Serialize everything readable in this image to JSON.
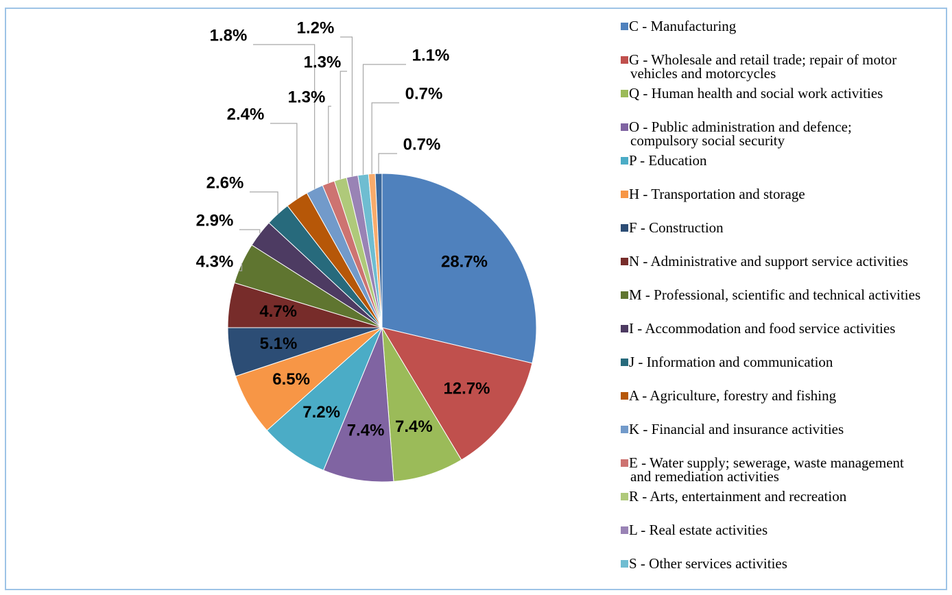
{
  "chart_data": {
    "type": "pie",
    "categories": [
      "C - Manufacturing",
      "G - Wholesale and retail trade; repair of motor vehicles and motorcycles",
      "Q - Human health and social work activities",
      "O - Public administration and defence; compulsory social security",
      "P - Education",
      "H - Transportation and storage",
      "F - Construction",
      "N - Administrative and support service activities",
      "M - Professional, scientific and technical activities",
      "I - Accommodation and food service activities",
      "J - Information and communication",
      "A - Agriculture, forestry and fishing",
      "K - Financial and insurance activities",
      "E - Water supply; sewerage, waste management  and remediation activities",
      "R - Arts, entertainment and recreation",
      "L - Real estate activities",
      "S - Other services activities",
      null,
      null
    ],
    "values": [
      28.7,
      12.7,
      7.4,
      7.4,
      7.2,
      6.5,
      5.1,
      4.7,
      4.3,
      2.9,
      2.6,
      2.4,
      1.8,
      1.3,
      1.3,
      1.2,
      1.1,
      0.7,
      0.7
    ],
    "value_labels": [
      "28.7%",
      "12.7%",
      "7.4%",
      "7.4%",
      "7.2%",
      "6.5%",
      "5.1%",
      "4.7%",
      "4.3%",
      "2.9%",
      "2.6%",
      "2.4%",
      "1.8%",
      "1.3%",
      "1.3%",
      "1.2%",
      "1.1%",
      "0.7%",
      "0.7%"
    ],
    "colors": [
      "#4f81bd",
      "#c0504d",
      "#9bbb59",
      "#8064a2",
      "#4bacc6",
      "#f79646",
      "#2c4d75",
      "#772c2a",
      "#5f7530",
      "#4d3b62",
      "#276a7c",
      "#b65708",
      "#729aca",
      "#cd7371",
      "#afc97a",
      "#9983b5",
      "#6fbdd1",
      "#f9ab6b",
      "#3a679c"
    ],
    "legend": "right"
  }
}
